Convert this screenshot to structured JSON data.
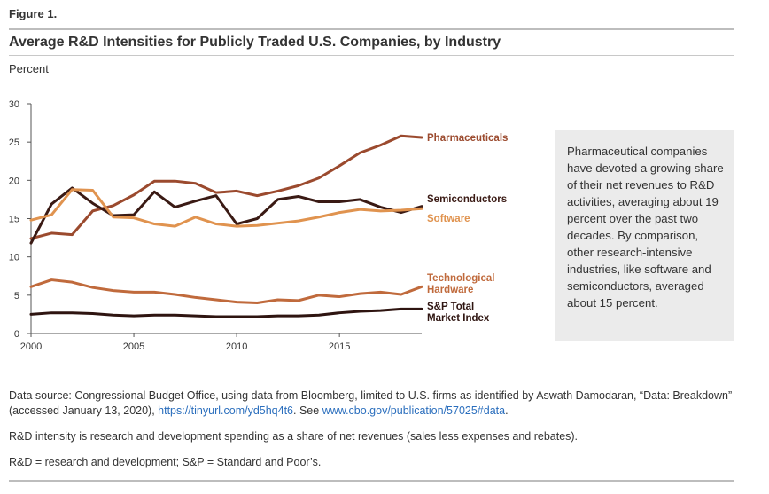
{
  "figure_label": "Figure 1.",
  "title": "Average R&D Intensities for Publicly Traded U.S. Companies, by Industry",
  "sidebar_text": "Pharmaceutical companies have devoted a growing share of their net revenues to R&D activities, averaging about 19 percent over the past two decades. By comparison, other research-intensive industries, like software and semiconductors, averaged about 15 percent.",
  "notes": {
    "source_prefix": "Data source: Congressional Budget Office, using data from Bloomberg, limited to U.S. firms as identified by Aswath Damodaran, “Data: Breakdown” (accessed January 13, 2020), ",
    "source_link1": "https://tinyurl.com/yd5hq4t6",
    "source_mid": ". See ",
    "source_link2": "www.cbo.gov/publication/57025#data",
    "source_end": ".",
    "definition": "R&D intensity is research and development spending as a share of net revenues (sales less expenses and rebates).",
    "abbreviations": "R&D = research and development; S&P = Standard and Poor’s."
  },
  "colors": {
    "pharmaceuticals": "#9b4a2e",
    "semiconductors": "#3a1a14",
    "software": "#e0934f",
    "technological_hardware": "#c06a3c",
    "sp_total": "#2e1410"
  },
  "chart_data": {
    "type": "line",
    "ylabel": "Percent",
    "xlabel": "",
    "xlim": [
      2000,
      2019
    ],
    "ylim": [
      0,
      30
    ],
    "x_ticks": [
      2000,
      2005,
      2010,
      2015
    ],
    "y_ticks": [
      0,
      5,
      10,
      15,
      20,
      25,
      30
    ],
    "grid": false,
    "legend": "inline-right",
    "x": [
      2000,
      2001,
      2002,
      2003,
      2004,
      2005,
      2006,
      2007,
      2008,
      2009,
      2010,
      2011,
      2012,
      2013,
      2014,
      2015,
      2016,
      2017,
      2018,
      2019
    ],
    "series": [
      {
        "name": "Pharmaceuticals",
        "color_key": "pharmaceuticals",
        "values": [
          12.4,
          13.1,
          12.9,
          16.0,
          16.7,
          18.1,
          19.9,
          19.9,
          19.6,
          18.4,
          18.6,
          18.0,
          18.6,
          19.3,
          20.3,
          21.9,
          23.6,
          24.6,
          25.8,
          25.6
        ]
      },
      {
        "name": "Semiconductors",
        "color_key": "semiconductors",
        "values": [
          11.8,
          16.9,
          19.0,
          17.0,
          15.4,
          15.5,
          18.5,
          16.5,
          17.3,
          18.0,
          14.3,
          15.0,
          17.5,
          17.9,
          17.2,
          17.2,
          17.5,
          16.5,
          15.8,
          16.6
        ]
      },
      {
        "name": "Software",
        "color_key": "software",
        "values": [
          14.8,
          15.5,
          18.8,
          18.7,
          15.2,
          15.1,
          14.3,
          14.0,
          15.2,
          14.3,
          14.0,
          14.1,
          14.4,
          14.7,
          15.2,
          15.8,
          16.2,
          16.0,
          16.1,
          16.3
        ]
      },
      {
        "name": "Technological Hardware",
        "color_key": "technological_hardware",
        "values": [
          6.1,
          7.0,
          6.7,
          6.0,
          5.6,
          5.4,
          5.4,
          5.1,
          4.7,
          4.4,
          4.1,
          4.0,
          4.4,
          4.3,
          5.0,
          4.8,
          5.2,
          5.4,
          5.1,
          6.1
        ]
      },
      {
        "name": "S&P Total Market Index",
        "color_key": "sp_total",
        "values": [
          2.5,
          2.7,
          2.7,
          2.6,
          2.4,
          2.3,
          2.4,
          2.4,
          2.3,
          2.2,
          2.2,
          2.2,
          2.3,
          2.3,
          2.4,
          2.7,
          2.9,
          3.0,
          3.2,
          3.2
        ]
      }
    ],
    "series_labels": [
      {
        "series": 0,
        "lines": [
          "Pharmaceuticals"
        ]
      },
      {
        "series": 1,
        "lines": [
          "Semiconductors"
        ]
      },
      {
        "series": 2,
        "lines": [
          "Software"
        ]
      },
      {
        "series": 3,
        "lines": [
          "Technological",
          "Hardware"
        ]
      },
      {
        "series": 4,
        "lines": [
          "S&P Total",
          "Market Index"
        ]
      }
    ]
  }
}
